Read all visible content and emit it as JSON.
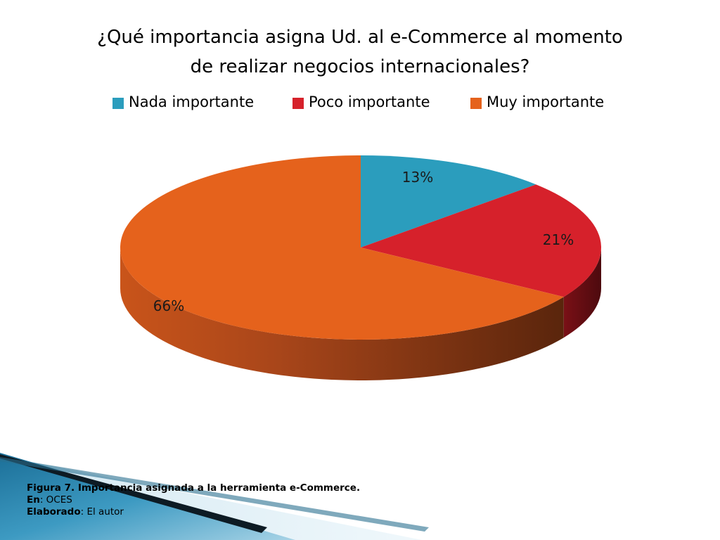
{
  "title": {
    "line1": "¿Qué importancia asigna Ud. al e-Commerce al momento",
    "line2": "de realizar negocios internacionales?"
  },
  "chart_data": {
    "type": "pie",
    "title": "¿Qué importancia asigna Ud. al e-Commerce al momento de realizar negocios internacionales?",
    "legend_position": "top",
    "categories": [
      "Nada importante",
      "Poco importante",
      "Muy importante"
    ],
    "values": [
      13,
      21,
      66
    ],
    "labels": [
      "13%",
      "21%",
      "66%"
    ],
    "colors": [
      "#2B9DBD",
      "#D6212B",
      "#E5621C"
    ],
    "side_colors": [
      "#1d6f86",
      "#6e0f14",
      "#8a3a10"
    ]
  },
  "caption": {
    "line1_bold": "Figura 7.  Importancia asignada a la herramienta e-Commerce.",
    "line2_bold": "En",
    "line2_rest": ": OCES",
    "line3_bold": "Elaborado",
    "line3_rest": ": El autor"
  }
}
